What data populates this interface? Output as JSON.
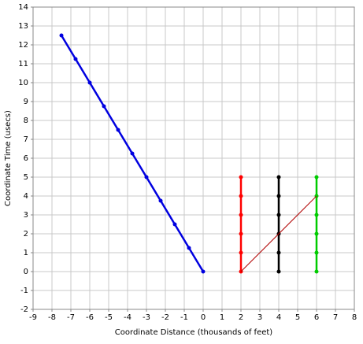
{
  "chart_data": {
    "type": "line",
    "x_label": "Coordinate Distance (thousands of feet)",
    "y_label": "Coordinate Time (usecs)",
    "xlim": [
      -9,
      8
    ],
    "ylim": [
      -2,
      14
    ],
    "xticks": [
      -9,
      -8,
      -7,
      -6,
      -5,
      -4,
      -3,
      -2,
      -1,
      0,
      1,
      2,
      3,
      4,
      5,
      6,
      7,
      8
    ],
    "yticks": [
      -2,
      -1,
      0,
      1,
      2,
      3,
      4,
      5,
      6,
      7,
      8,
      9,
      10,
      11,
      12,
      13,
      14
    ],
    "grid": true,
    "series": [
      {
        "color": "#0000e0",
        "width": 2.5,
        "markers": true,
        "x": [
          -7.5,
          -6.75,
          -6,
          -5.25,
          -4.5,
          -3.75,
          -3,
          -2.25,
          -1.5,
          -0.75,
          0
        ],
        "values": [
          12.5,
          11.25,
          10,
          8.75,
          7.5,
          6.25,
          5,
          3.75,
          2.5,
          1.25,
          0
        ]
      },
      {
        "color": "#ff0000",
        "width": 2.5,
        "markers": true,
        "x": [
          2,
          2,
          2,
          2,
          2,
          2
        ],
        "values": [
          0,
          1,
          2,
          3,
          4,
          5
        ]
      },
      {
        "color": "#000000",
        "width": 2.5,
        "markers": true,
        "x": [
          4,
          4,
          4,
          4,
          4,
          4
        ],
        "values": [
          0,
          1,
          2,
          3,
          4,
          5
        ]
      },
      {
        "color": "#00cc00",
        "width": 2.5,
        "markers": true,
        "x": [
          6,
          6,
          6,
          6,
          6,
          6
        ],
        "values": [
          0,
          1,
          2,
          3,
          4,
          5
        ]
      },
      {
        "color": "#b00000",
        "width": 1,
        "markers": false,
        "x": [
          2,
          6
        ],
        "values": [
          0,
          4
        ]
      }
    ]
  }
}
